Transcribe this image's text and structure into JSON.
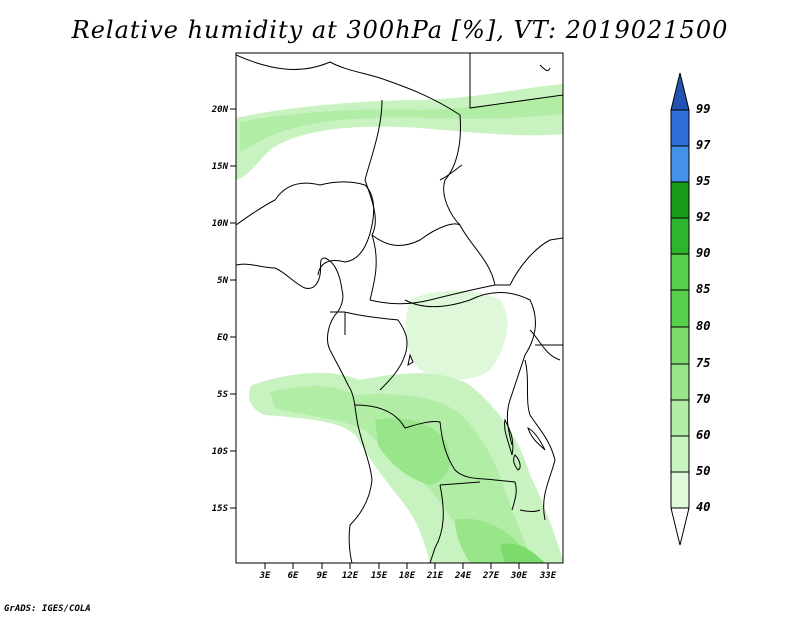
{
  "title": "Relative humidity at 300hPa [%], VT: 2019021500",
  "credit": "GrADS: IGES/COLA",
  "colors": {
    "c40": "#f2fdf0",
    "c50": "#e0f8da",
    "c60": "#c8f2bf",
    "c70": "#b2eda6",
    "c75": "#98e58a",
    "c80": "#7bdc6c",
    "c85": "#57d04b",
    "c90": "#2eb52e",
    "c92": "#179a17",
    "c95": "#4593e9",
    "c97": "#2f6fd8",
    "c99": "#2452b0",
    "outline": "#000000"
  },
  "map_data": {
    "type": "filled-contour",
    "variable": "Relative humidity",
    "level": "300hPa",
    "units": "%",
    "valid_time": "2019021500",
    "lon_range": [
      0,
      34
    ],
    "lat_range": [
      -20,
      24
    ],
    "lon_ticks": [
      "3E",
      "6E",
      "9E",
      "12E",
      "15E",
      "18E",
      "21E",
      "24E",
      "27E",
      "30E",
      "33E"
    ],
    "lat_ticks": [
      "20N",
      "15N",
      "10N",
      "5N",
      "EQ",
      "5S",
      "10S",
      "15S"
    ],
    "colorbar_levels": [
      "40",
      "50",
      "60",
      "70",
      "75",
      "80",
      "85",
      "90",
      "92",
      "95",
      "97",
      "99"
    ]
  }
}
